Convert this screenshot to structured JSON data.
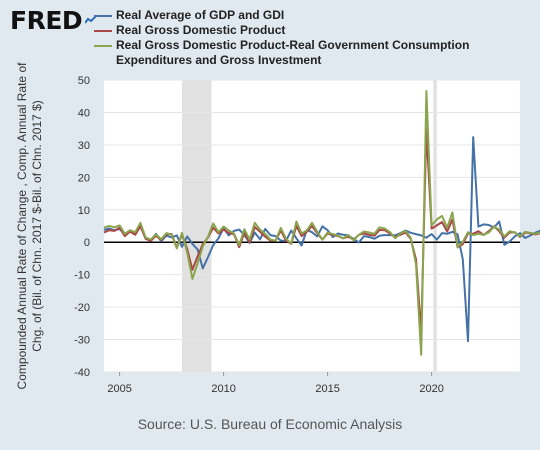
{
  "brand": {
    "logo_text": "FRED"
  },
  "colors": {
    "background": "#e1e9f0",
    "plot_bg": "#ffffff",
    "recession": "#e1e1e1",
    "series": [
      "#4572a7",
      "#aa4643",
      "#89a54e"
    ]
  },
  "source_text": "Source: U.S. Bureau of Economic Analysis",
  "chart_data": {
    "type": "line",
    "ylabel": "Compounded Annual Rate of Change , Comp. Annual Rate of Chg. of (Bil. of Chn. 2017 $-Bil. of Chn. 2017 $)",
    "ylabel_lines": [
      "Compounded Annual Rate of Change , Comp. Annual Rate of",
      "Chg. of (Bil. of Chn. 2017 $-Bil. of Chn. 2017 $)"
    ],
    "ylim": [
      -40,
      50
    ],
    "yticks": [
      50,
      40,
      30,
      20,
      10,
      0,
      -10,
      -20,
      -30,
      -40
    ],
    "xlim": [
      "2004-04",
      "2024-04"
    ],
    "xticks": [
      "2005",
      "2010",
      "2015",
      "2020"
    ],
    "grid": true,
    "legend_position": "top",
    "recessions": [
      [
        "2008-01",
        "2009-06"
      ],
      [
        "2020-02",
        "2020-04"
      ]
    ],
    "series": [
      {
        "name": "Real Average of GDP and GDI",
        "start": "2004-04",
        "values": [
          3.8,
          4.2,
          3.7,
          4.1,
          2.4,
          3.2,
          2.9,
          5.4,
          1.2,
          0.6,
          2.6,
          0.3,
          2.0,
          1.5,
          2.1,
          -1.4,
          1.8,
          -0.5,
          -2.2,
          -8.1,
          -4.6,
          -0.9,
          1.2,
          4.3,
          2.1,
          3.5,
          3.9,
          2.2,
          -0.2,
          3.0,
          0.9,
          4.1,
          2.2,
          1.9,
          0.5,
          0.4,
          3.6,
          1.2,
          -1.0,
          3.8,
          3.1,
          1.8,
          4.9,
          3.7,
          1.6,
          2.7,
          2.3,
          2.1,
          1.0,
          -0.1,
          1.9,
          1.6,
          1.1,
          2.0,
          2.2,
          2.2,
          2.1,
          2.8,
          3.6,
          2.9,
          2.5,
          2.1,
          1.4,
          2.5,
          0.8,
          2.8,
          2.6,
          3.2,
          2.4,
          -5.3,
          -30.5,
          32.4,
          4.8,
          5.5,
          5.3,
          4.5,
          6.4,
          -0.8,
          0.2,
          1.8,
          2.8,
          1.3,
          2.1,
          3.0,
          3.6,
          1.5,
          2.7
        ]
      },
      {
        "name": "Real Gross Domestic Product",
        "start": "2004-04",
        "values": [
          3.0,
          3.7,
          3.5,
          4.5,
          1.9,
          3.3,
          2.3,
          4.9,
          1.1,
          0.4,
          2.0,
          0.7,
          2.5,
          2.5,
          -1.6,
          2.3,
          -2.1,
          -8.5,
          -4.4,
          -0.6,
          1.5,
          4.5,
          2.7,
          3.9,
          2.8,
          2.5,
          -1.5,
          2.9,
          -0.1,
          4.7,
          3.2,
          1.7,
          0.5,
          0.5,
          3.6,
          0.5,
          -0.5,
          5.0,
          1.9,
          3.2,
          5.0,
          2.8,
          0.8,
          2.7,
          2.3,
          1.9,
          1.2,
          1.7,
          0.8,
          2.3,
          2.7,
          2.3,
          2.0,
          3.8,
          3.7,
          2.7,
          1.6,
          2.3,
          3.0,
          1.0,
          -5.3,
          -28.0,
          34.8,
          4.2,
          5.2,
          6.2,
          3.3,
          7.0,
          -1.6,
          -0.6,
          2.7,
          2.6,
          3.4,
          2.2,
          3.4,
          4.9,
          3.4,
          1.4,
          3.0,
          3.1,
          1.6,
          3.0,
          2.8,
          2.4,
          2.9,
          3.1,
          2.8
        ]
      },
      {
        "name": "Real Gross Domestic Product-Real Government Consumption Expenditures and Gross Investment",
        "start": "2004-04",
        "values": [
          4.5,
          5.0,
          4.6,
          5.2,
          2.6,
          3.7,
          3.1,
          6.0,
          1.5,
          0.8,
          2.4,
          0.9,
          2.8,
          2.3,
          -1.9,
          2.9,
          -3.2,
          -11.3,
          -6.5,
          -1.3,
          1.7,
          5.8,
          3.1,
          4.8,
          3.6,
          2.7,
          -0.9,
          4.0,
          0.8,
          6.0,
          3.9,
          2.6,
          0.8,
          0.5,
          4.4,
          1.1,
          -0.4,
          6.4,
          2.7,
          3.6,
          6.0,
          3.2,
          0.8,
          3.0,
          2.5,
          2.0,
          1.2,
          2.2,
          0.6,
          2.3,
          3.3,
          3.0,
          2.6,
          4.6,
          4.2,
          3.1,
          1.2,
          2.7,
          3.5,
          1.3,
          -6.8,
          -34.7,
          46.6,
          5.2,
          7.0,
          8.1,
          4.5,
          9.2,
          -1.5,
          0.1,
          3.1,
          2.2,
          2.6,
          2.3,
          3.0,
          4.8,
          3.9,
          1.8,
          3.4,
          3.0,
          1.8,
          3.2,
          2.9,
          2.6,
          3.1,
          3.2,
          3.0
        ]
      }
    ]
  }
}
